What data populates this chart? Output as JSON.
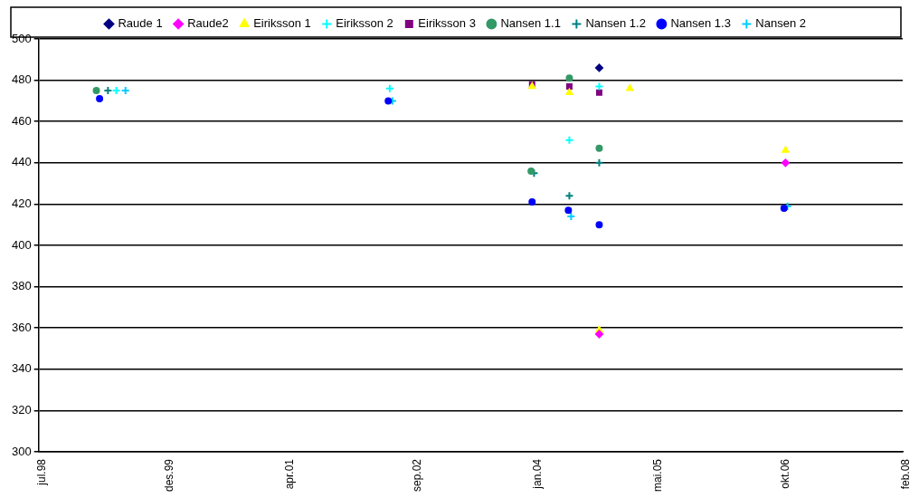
{
  "chart_data": {
    "type": "scatter",
    "legend": "top",
    "grid": "y",
    "xlim": [
      "1998-07-01",
      "2008-02-01"
    ],
    "xticks": [
      {
        "value": "1998-07-01",
        "label": "jul.98"
      },
      {
        "value": "1999-12-01",
        "label": "des.99"
      },
      {
        "value": "2001-04-01",
        "label": "apr.01"
      },
      {
        "value": "2002-09-01",
        "label": "sep.02"
      },
      {
        "value": "2004-01-01",
        "label": "jan.04"
      },
      {
        "value": "2005-05-01",
        "label": "mai.05"
      },
      {
        "value": "2006-10-01",
        "label": "okt.06"
      },
      {
        "value": "2008-02-01",
        "label": "feb.08"
      }
    ],
    "ylim": [
      300,
      500
    ],
    "yticks": [
      300,
      320,
      340,
      360,
      380,
      400,
      420,
      440,
      460,
      480,
      500
    ],
    "series": [
      {
        "name": "Raude 1",
        "color": "#000080",
        "marker": "diamond",
        "x": [
          "2004-09-19"
        ],
        "values": [
          486
        ]
      },
      {
        "name": "Raude2",
        "color": "#ff00ff",
        "marker": "diamond",
        "x": [
          "2004-09-19",
          "2006-10-14"
        ],
        "values": [
          357,
          440
        ]
      },
      {
        "name": "Eiriksson 1",
        "color": "#ffff00",
        "marker": "triangle",
        "x": [
          "2003-12-22",
          "2004-05-21",
          "2004-09-19",
          "2005-01-21",
          "2006-10-14"
        ],
        "values": [
          477,
          474,
          359,
          476,
          446
        ]
      },
      {
        "name": "Eiriksson 2",
        "color": "#00ffff",
        "marker": "cross",
        "x": [
          "1999-05-12",
          "2002-05-24",
          "2004-05-21",
          "2004-09-19"
        ],
        "values": [
          475,
          476,
          451,
          477
        ]
      },
      {
        "name": "Eiriksson 3",
        "color": "#800080",
        "marker": "square",
        "x": [
          "2003-12-22",
          "2004-05-21",
          "2004-09-19"
        ],
        "values": [
          478,
          477,
          474
        ]
      },
      {
        "name": "Nansen 1.1",
        "color": "#339966",
        "marker": "circle",
        "x": [
          "1999-02-20",
          "2003-12-18",
          "2004-05-21",
          "2004-09-19"
        ],
        "values": [
          475,
          436,
          481,
          447
        ]
      },
      {
        "name": "Nansen 1.2",
        "color": "#008080",
        "marker": "cross",
        "x": [
          "1999-04-08",
          "2003-12-30",
          "2004-05-21",
          "2004-09-19"
        ],
        "values": [
          475,
          435,
          424,
          440
        ]
      },
      {
        "name": "Nansen 1.3",
        "color": "#0000ff",
        "marker": "circle",
        "x": [
          "1999-03-05",
          "2002-05-18",
          "2003-12-22",
          "2004-05-17",
          "2004-09-19",
          "2006-10-08"
        ],
        "values": [
          471,
          470,
          421,
          417,
          410,
          418
        ]
      },
      {
        "name": "Nansen 2",
        "color": "#00ccff",
        "marker": "cross",
        "x": [
          "1999-06-18",
          "2002-06-04",
          "2004-05-28",
          "2006-10-22"
        ],
        "values": [
          475,
          470,
          414,
          419
        ]
      }
    ]
  }
}
